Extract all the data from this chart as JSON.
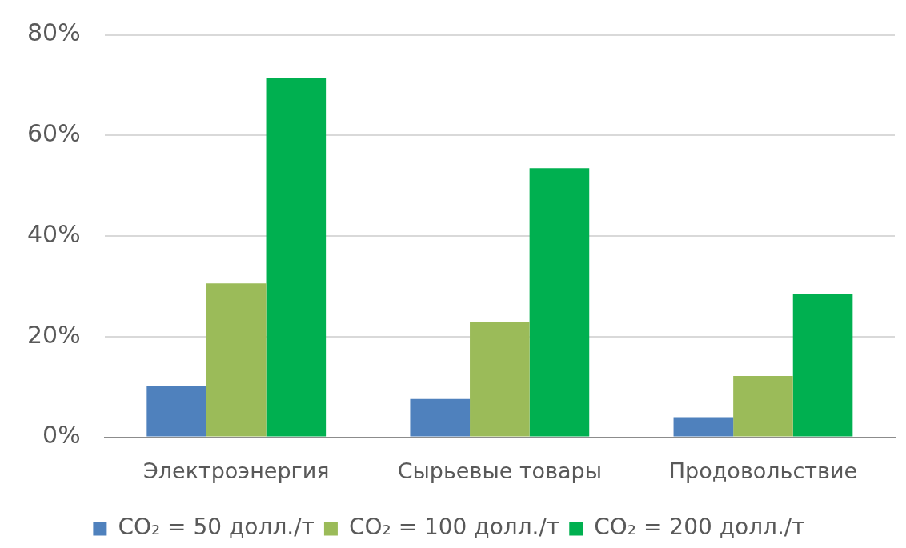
{
  "chart_data": {
    "type": "bar",
    "categories": [
      "Электроэнергия",
      "Сырьевые товары",
      "Продовольствие"
    ],
    "series": [
      {
        "name": "CO₂ = 50 долл./т",
        "color": "#4f81bd",
        "values": [
          10.2,
          7.6,
          4.0
        ]
      },
      {
        "name": "CO₂ = 100 долл./т",
        "color": "#9bbb59",
        "values": [
          30.6,
          22.9,
          12.2
        ]
      },
      {
        "name": "CO₂ = 200 долл./т",
        "color": "#00b050",
        "values": [
          71.4,
          53.5,
          28.5
        ]
      }
    ],
    "ylim": [
      0,
      80
    ],
    "yticks": [
      {
        "value": 0,
        "label": "0%"
      },
      {
        "value": 20,
        "label": "20%"
      },
      {
        "value": 40,
        "label": "40%"
      },
      {
        "value": 60,
        "label": "60%"
      },
      {
        "value": 80,
        "label": "80%"
      }
    ],
    "grid": "y",
    "legend": "bottom"
  }
}
